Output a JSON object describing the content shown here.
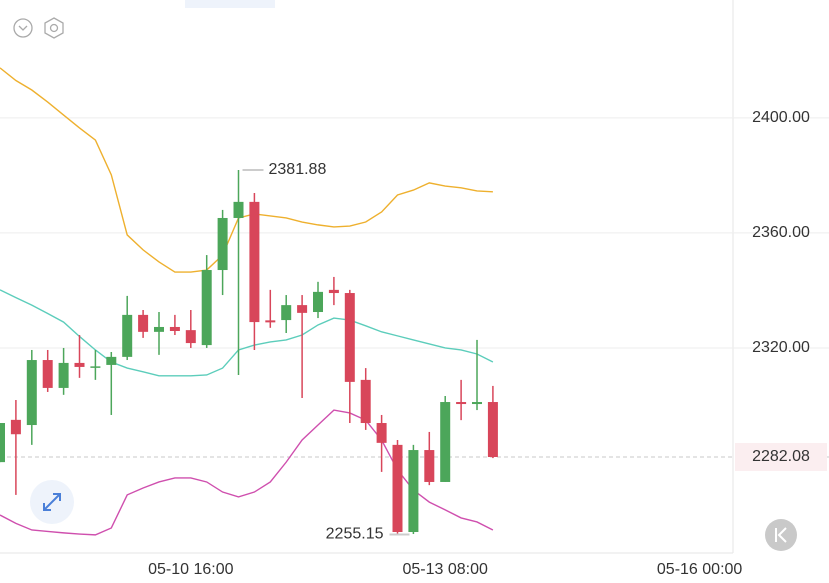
{
  "chart_data": {
    "type": "candlestick",
    "x": [
      0,
      1,
      2,
      3,
      4,
      5,
      6,
      7,
      8,
      9,
      10,
      11,
      12,
      13,
      14,
      15,
      16,
      17,
      18,
      19,
      20,
      21,
      22,
      23,
      24,
      25,
      26,
      27,
      28,
      29,
      30,
      31
    ],
    "open": [
      2280.3,
      2295.0,
      2293.2,
      2315.8,
      2306.1,
      2314.8,
      2313.4,
      2314.1,
      2316.9,
      2331.5,
      2325.6,
      2327.3,
      2326.2,
      2321.0,
      2347.1,
      2365.2,
      2370.8,
      2329.6,
      2329.7,
      2334.9,
      2332.5,
      2340.2,
      2339.1,
      2308.9,
      2293.9,
      2286.3,
      2256.0,
      2284.5,
      2273.4,
      2301.2,
      2300.5,
      2301.2
    ],
    "high": [
      2293.9,
      2301.9,
      2319.3,
      2319.3,
      2320.0,
      2324.5,
      2319.3,
      2318.6,
      2338.1,
      2333.2,
      2332.5,
      2331.5,
      2333.2,
      2352.3,
      2368.0,
      2381.88,
      2373.9,
      2340.2,
      2338.4,
      2338.4,
      2343.0,
      2344.7,
      2340.2,
      2313.0,
      2296.7,
      2288.0,
      2286.3,
      2290.8,
      2303.3,
      2308.9,
      2322.8,
      2306.8
    ],
    "low": [
      2280.3,
      2268.9,
      2286.3,
      2304.7,
      2303.7,
      2309.6,
      2308.9,
      2296.7,
      2315.8,
      2323.5,
      2317.6,
      2324.5,
      2320.0,
      2320.0,
      2338.4,
      2310.6,
      2319.3,
      2327.0,
      2325.2,
      2302.6,
      2330.4,
      2334.9,
      2293.9,
      2291.5,
      2276.9,
      2255.15,
      2255.3,
      2272.3,
      2273.4,
      2294.9,
      2298.4,
      2281.7
    ],
    "close": [
      2293.9,
      2290.0,
      2315.8,
      2306.1,
      2314.8,
      2313.4,
      2313.6,
      2316.9,
      2331.5,
      2325.6,
      2327.3,
      2325.9,
      2321.7,
      2347.1,
      2365.2,
      2370.8,
      2329.0,
      2328.9,
      2334.9,
      2332.2,
      2339.5,
      2339.1,
      2308.2,
      2293.9,
      2287.0,
      2256.0,
      2284.5,
      2273.4,
      2301.2,
      2300.5,
      2301.2,
      2282.08
    ],
    "up_color": "#4ca65a",
    "down_color": "#d8465a",
    "lines": [
      {
        "color": "#eeb02e",
        "values": [
          2417.4,
          2413,
          2409.7,
          2405.5,
          2401.0,
          2396.5,
          2392.3,
          2380.2,
          2359.3,
          2354.1,
          2349.9,
          2346.4,
          2346.4,
          2347.1,
          2352.3,
          2365.2,
          2366.6,
          2365.9,
          2365.2,
          2363.8,
          2362.8,
          2362.1,
          2362.4,
          2363.8,
          2367.3,
          2373.2,
          2374.9,
          2377.4,
          2376.3,
          2375.7,
          2374.6,
          2374.3
        ]
      },
      {
        "color": "#5ccdbb",
        "values": [
          2340.2,
          2337.5,
          2334.9,
          2332,
          2329.0,
          2324,
          2319.3,
          2315.1,
          2313.0,
          2311.7,
          2310.3,
          2310.3,
          2310.3,
          2310.6,
          2313.0,
          2319.3,
          2321.0,
          2322.1,
          2322.8,
          2324.5,
          2328.0,
          2330.4,
          2329.7,
          2327.7,
          2325.6,
          2324.2,
          2322.8,
          2321.4,
          2320.0,
          2319.3,
          2317.9,
          2315.1
        ]
      },
      {
        "color": "#cf4fae",
        "values": [
          2261.9,
          2259,
          2256.7,
          2256.2,
          2255.7,
          2255.3,
          2255.0,
          2257.4,
          2268.9,
          2271.3,
          2273.4,
          2274.8,
          2274.8,
          2273.4,
          2269.9,
          2268.2,
          2269.9,
          2273.4,
          2280.3,
          2288.0,
          2293.2,
          2298.4,
          2297.4,
          2294.9,
          2288.0,
          2277.6,
          2270.6,
          2266.4,
          2263.7,
          2260.9,
          2259.5,
          2256.7
        ]
      }
    ],
    "xlim": [
      0,
      46.1
    ],
    "xticks": [
      {
        "value": 12,
        "label": "05-10 16:00"
      },
      {
        "value": 28,
        "label": "05-13 08:00"
      },
      {
        "value": 44,
        "label": "05-16 00:00"
      }
    ],
    "ylim": [
      2248.7,
      2441.0
    ],
    "yticks": [
      {
        "value": 2320,
        "label": "2320.00"
      },
      {
        "value": 2360,
        "label": "2360.00"
      },
      {
        "value": 2400,
        "label": "2400.00"
      }
    ],
    "grid": true,
    "high_label": {
      "x": 15,
      "value": 2381.88
    },
    "low_label": {
      "x": 25,
      "value": 2255.15
    },
    "last_price": 2282.08
  }
}
